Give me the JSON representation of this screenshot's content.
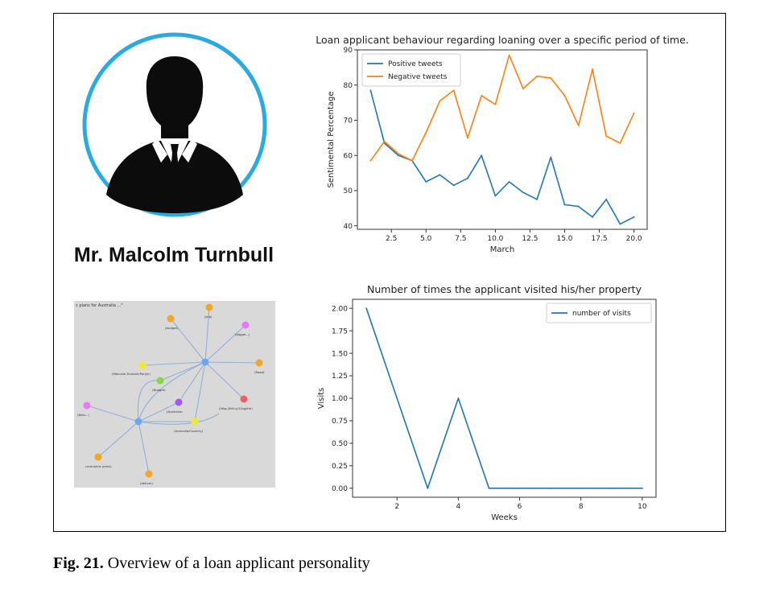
{
  "figure": {
    "person_name": "Mr. Malcolm Turnbull",
    "caption_label": "Fig. 21.",
    "caption_text": " Overview of a loan applicant personality",
    "avatar_icon": "businessman-silhouette-icon",
    "avatar_ring_color": "#29abe2"
  },
  "network_graph": {
    "header": "c plans for Australia ...\"",
    "node_labels": [
      "(budget)",
      "(trip)",
      "(bigger...)",
      "(Malcolm-Turnbull/Parlyn)",
      "(Road)",
      "(Budget)",
      "(Australia)",
      "(http://bit.ly/1QqgXm)",
      "(Australia/Country)",
      "(Bets...)",
      "(economic plans)",
      "(deliver)"
    ]
  },
  "chart_data": [
    {
      "type": "line",
      "title": "Loan applicant behaviour regarding loaning over a specific period of time.",
      "xlabel": "March",
      "ylabel": "Sentimental Percentage",
      "xlim": [
        0.05,
        20.95
      ],
      "ylim": [
        39,
        90
      ],
      "xticks": [
        2.5,
        5.0,
        7.5,
        10.0,
        12.5,
        15.0,
        17.5,
        20.0
      ],
      "xtick_labels": [
        "2.5",
        "5.0",
        "7.5",
        "10.0",
        "12.5",
        "15.0",
        "17.5",
        "20.0"
      ],
      "yticks": [
        40,
        50,
        60,
        70,
        80,
        90
      ],
      "ytick_labels": [
        "40",
        "50",
        "60",
        "70",
        "80",
        "90"
      ],
      "legend": "upper-left",
      "grid": false,
      "x": [
        1,
        2,
        3,
        4,
        5,
        6,
        7,
        8,
        9,
        10,
        11,
        12,
        13,
        14,
        15,
        16,
        17,
        18,
        19,
        20
      ],
      "series": [
        {
          "name": "Positive tweets",
          "color": "#1f77b4",
          "values": [
            78.5,
            63.5,
            60,
            58.5,
            52.5,
            54.5,
            51.5,
            53.5,
            60,
            48.5,
            52.5,
            49.5,
            47.5,
            59.5,
            46,
            45.5,
            42.5,
            47.5,
            40.5,
            42.5
          ]
        },
        {
          "name": "Negative tweets",
          "color": "#ff7f0e",
          "values": [
            58.5,
            64,
            60.5,
            58.5,
            66.5,
            75.5,
            78.5,
            65,
            77,
            74.5,
            88.5,
            79,
            82.5,
            82,
            77,
            68.5,
            84.5,
            65.5,
            63.5,
            72
          ]
        }
      ]
    },
    {
      "type": "line",
      "title": "Number of times the applicant visited his/her property",
      "xlabel": "Weeks",
      "ylabel": "Visits",
      "xlim": [
        0.55,
        10.45
      ],
      "ylim": [
        -0.1,
        2.1
      ],
      "xticks": [
        2,
        4,
        6,
        8,
        10
      ],
      "xtick_labels": [
        "2",
        "4",
        "6",
        "8",
        "10"
      ],
      "yticks": [
        0,
        0.25,
        0.5,
        0.75,
        1.0,
        1.25,
        1.5,
        1.75,
        2.0
      ],
      "ytick_labels": [
        "0.00",
        "0.25",
        "0.50",
        "0.75",
        "1.00",
        "1.25",
        "1.50",
        "1.75",
        "2.00"
      ],
      "legend": "upper-right",
      "grid": false,
      "x": [
        1,
        2,
        3,
        4,
        5,
        6,
        7,
        8,
        9,
        10
      ],
      "series": [
        {
          "name": "number of visits",
          "color": "#1f77b4",
          "values": [
            2,
            1,
            0,
            1,
            0,
            0,
            0,
            0,
            0,
            0
          ]
        }
      ]
    }
  ]
}
